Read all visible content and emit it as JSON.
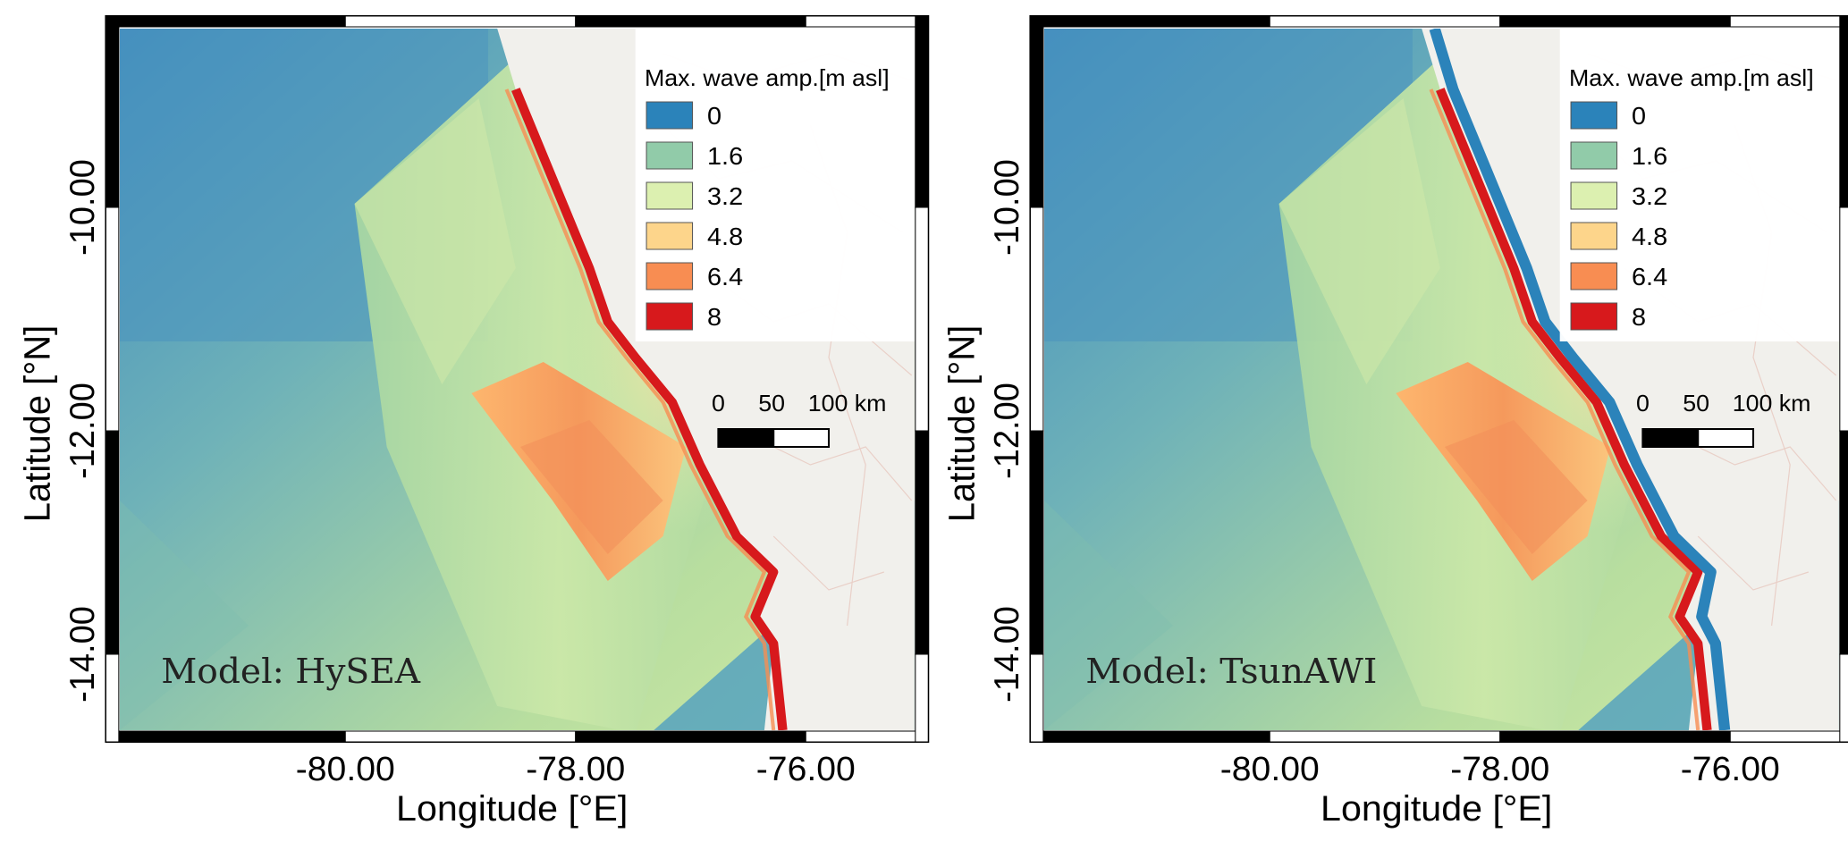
{
  "legend": {
    "title": "Max. wave amp.[m asl]",
    "entries": [
      {
        "label": "0",
        "color": "#2b83ba"
      },
      {
        "label": "1.6",
        "color": "#91cba9"
      },
      {
        "label": "3.2",
        "color": "#dcf0b0"
      },
      {
        "label": "4.8",
        "color": "#fdd58b"
      },
      {
        "label": "6.4",
        "color": "#f88d52"
      },
      {
        "label": "8",
        "color": "#d7191c"
      }
    ]
  },
  "scalebar": {
    "labels": [
      "0",
      "50",
      "100 km"
    ]
  },
  "axes": {
    "xlabel": "Longitude [°E]",
    "ylabel": "Latitude [°N]",
    "xticks": [
      "-80.00",
      "-78.00",
      "-76.00"
    ],
    "yticks": [
      "-10.00",
      "-12.00",
      "-14.00"
    ]
  },
  "panels": [
    {
      "model_label": "Model: HySEA",
      "inundation": false
    },
    {
      "model_label": "Model: TsunAWI",
      "inundation": true
    }
  ],
  "colors": {
    "ocean_deep": "#4a94bd",
    "land": "#f1f0ec"
  }
}
